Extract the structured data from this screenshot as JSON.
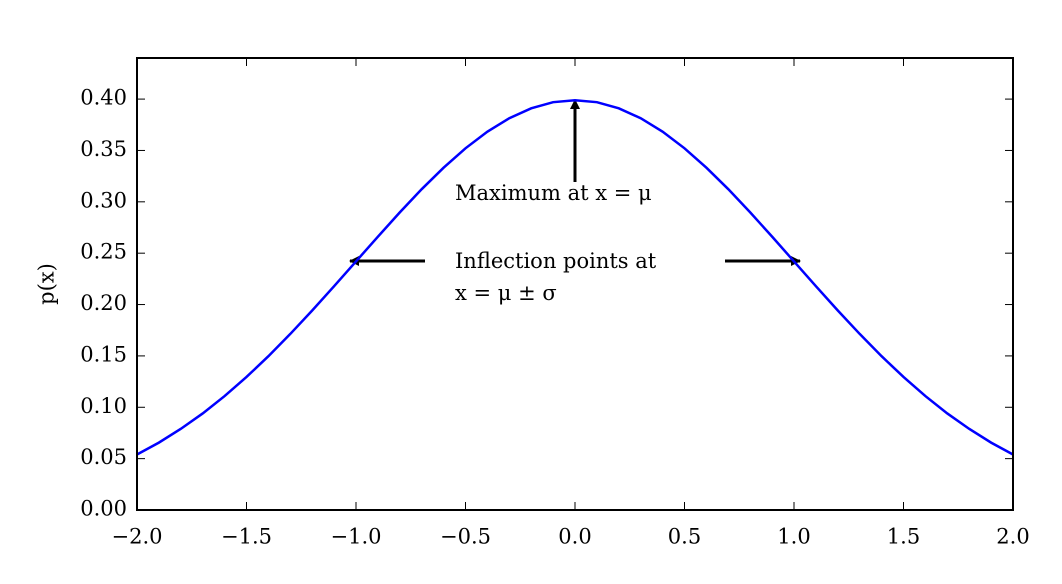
{
  "chart_data": {
    "type": "line",
    "ylabel": "p(x)",
    "annotations": [
      "Maximum at x = μ",
      "Inflection points at",
      "x = μ ± σ"
    ],
    "color": "#0000ff",
    "x": [
      -2.0,
      -1.9,
      -1.8,
      -1.7,
      -1.6,
      -1.5,
      -1.4,
      -1.3,
      -1.2,
      -1.1,
      -1.0,
      -0.9,
      -0.8,
      -0.7,
      -0.6,
      -0.5,
      -0.4,
      -0.3,
      -0.2,
      -0.1,
      0.0,
      0.1,
      0.2,
      0.3,
      0.4,
      0.5,
      0.6,
      0.7,
      0.8,
      0.9,
      1.0,
      1.1,
      1.2,
      1.3,
      1.4,
      1.5,
      1.6,
      1.7,
      1.8,
      1.9,
      2.0
    ],
    "values": [
      0.054,
      0.0656,
      0.079,
      0.094,
      0.1109,
      0.1295,
      0.1497,
      0.1714,
      0.1942,
      0.2179,
      0.242,
      0.2661,
      0.2897,
      0.3123,
      0.3332,
      0.3521,
      0.3683,
      0.3814,
      0.391,
      0.397,
      0.3989,
      0.397,
      0.391,
      0.3814,
      0.3683,
      0.3521,
      0.3332,
      0.3123,
      0.2897,
      0.2661,
      0.242,
      0.2179,
      0.1942,
      0.1714,
      0.1497,
      0.1295,
      0.1109,
      0.094,
      0.079,
      0.0656,
      0.054
    ],
    "xlim": [
      -2.0,
      2.0
    ],
    "ylim": [
      0,
      0.44
    ],
    "xticks": [
      {
        "value": -2.0,
        "label": "−2.0"
      },
      {
        "value": -1.5,
        "label": "−1.5"
      },
      {
        "value": -1.0,
        "label": "−1.0"
      },
      {
        "value": -0.5,
        "label": "−0.5"
      },
      {
        "value": 0.0,
        "label": "0.0"
      },
      {
        "value": 0.5,
        "label": "0.5"
      },
      {
        "value": 1.0,
        "label": "1.0"
      },
      {
        "value": 1.5,
        "label": "1.5"
      },
      {
        "value": 2.0,
        "label": "2.0"
      }
    ],
    "yticks": [
      {
        "value": 0,
        "label": "0.00"
      },
      {
        "value": 0.05,
        "label": "0.05"
      },
      {
        "value": 0.1,
        "label": "0.10"
      },
      {
        "value": 0.15,
        "label": "0.15"
      },
      {
        "value": 0.2,
        "label": "0.20"
      },
      {
        "value": 0.25,
        "label": "0.25"
      },
      {
        "value": 0.3,
        "label": "0.30"
      },
      {
        "value": 0.35,
        "label": "0.35"
      },
      {
        "value": 0.4,
        "label": "0.40"
      }
    ],
    "grid": false
  }
}
